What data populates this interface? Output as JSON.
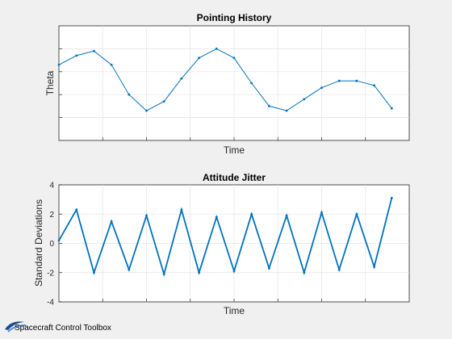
{
  "window_footer": {
    "label": "Spacecraft Control Toolbox"
  },
  "chart_data": [
    {
      "type": "line",
      "title": "Pointing History",
      "xlabel": "Time",
      "ylabel": "Theta",
      "ylim": [
        0,
        5
      ],
      "xlim": [
        0,
        1
      ],
      "show_yticklabels": false,
      "show_xticklabels": false,
      "grid": true,
      "color": "#0072BD",
      "series": [
        {
          "x": [
            0.0,
            0.05,
            0.1,
            0.15,
            0.2,
            0.25,
            0.3,
            0.35,
            0.4,
            0.45,
            0.5,
            0.55,
            0.6,
            0.65,
            0.7,
            0.75,
            0.8,
            0.85,
            0.9,
            0.95
          ],
          "values": [
            3.3,
            3.7,
            3.9,
            3.3,
            2.0,
            1.3,
            1.7,
            2.7,
            3.6,
            4.0,
            3.6,
            2.5,
            1.5,
            1.3,
            1.8,
            2.3,
            2.6,
            2.6,
            2.4,
            1.4
          ]
        }
      ]
    },
    {
      "type": "line",
      "title": "Attitude Jitter",
      "xlabel": "Time",
      "ylabel": "Standard Deviations",
      "ylim": [
        -4,
        4
      ],
      "xlim": [
        0,
        1
      ],
      "yticks": [
        -4,
        -2,
        0,
        2,
        4
      ],
      "show_xticklabels": false,
      "grid": true,
      "color": "#0072BD",
      "series": [
        {
          "x": [
            0.0,
            0.05,
            0.1,
            0.15,
            0.2,
            0.25,
            0.3,
            0.35,
            0.4,
            0.45,
            0.5,
            0.55,
            0.6,
            0.65,
            0.7,
            0.75,
            0.8,
            0.85,
            0.9,
            0.95
          ],
          "values": [
            0.2,
            2.3,
            -2.0,
            1.5,
            -1.8,
            1.9,
            -2.1,
            2.3,
            -2.0,
            1.8,
            -1.9,
            2.0,
            -1.7,
            1.9,
            -2.0,
            2.1,
            -1.8,
            2.0,
            -1.6,
            3.1
          ]
        }
      ]
    }
  ]
}
